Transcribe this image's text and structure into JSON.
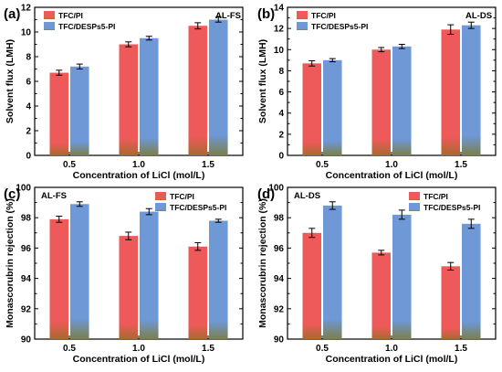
{
  "colors": {
    "tfc_pi_fill": "#ee5a5a",
    "tfc_pi_bottom": "#a8692e",
    "tfc_desps5_fill": "#6e98d6",
    "tfc_desps5_bottom": "#7b7f4a"
  },
  "chart_data": [
    {
      "id": "a",
      "type": "bar",
      "panel_label": "(a)",
      "tag": "AL-FS",
      "categories": [
        "0.5",
        "1.0",
        "1.5"
      ],
      "xlabel": "Concentration of LiCl (mol/L)",
      "ylabel": "Solvent flux (LMH)",
      "ylim": [
        0,
        12
      ],
      "yticks": [
        "0",
        "2",
        "4",
        "6",
        "8",
        "10",
        "12"
      ],
      "legend_position": "top-left",
      "series": [
        {
          "name": "TFC/PI",
          "values": [
            6.7,
            9.0,
            10.5
          ],
          "errors": [
            0.2,
            0.2,
            0.25
          ]
        },
        {
          "name": "TFC/DESPs5-PI",
          "values": [
            7.2,
            9.5,
            11.0
          ],
          "errors": [
            0.2,
            0.15,
            0.2
          ]
        }
      ]
    },
    {
      "id": "b",
      "type": "bar",
      "panel_label": "(b)",
      "tag": "AL-DS",
      "categories": [
        "0.5",
        "1.0",
        "1.5"
      ],
      "xlabel": "Concentration of LiCl (mol/L)",
      "ylabel": "Solvent flux (LMH)",
      "ylim": [
        0,
        14
      ],
      "yticks": [
        "0",
        "2",
        "4",
        "6",
        "8",
        "10",
        "12",
        "14"
      ],
      "legend_position": "top-left",
      "series": [
        {
          "name": "TFC/PI",
          "values": [
            8.7,
            10.0,
            11.9
          ],
          "errors": [
            0.25,
            0.2,
            0.45
          ]
        },
        {
          "name": "TFC/DESPs5-PI",
          "values": [
            9.0,
            10.3,
            12.3
          ],
          "errors": [
            0.15,
            0.2,
            0.3
          ]
        }
      ]
    },
    {
      "id": "c",
      "type": "bar",
      "panel_label": "(c)",
      "tag": "AL-FS",
      "categories": [
        "0.5",
        "1.0",
        "1.5"
      ],
      "xlabel": "Concentration of LiCl (mol/L)",
      "ylabel": "Monascorubrin rejection (%)",
      "ylim": [
        90,
        100
      ],
      "yticks": [
        "90",
        "92",
        "94",
        "96",
        "98",
        "100"
      ],
      "legend_position": "top-right",
      "series": [
        {
          "name": "TFC/PI",
          "values": [
            97.9,
            96.8,
            96.1
          ],
          "errors": [
            0.2,
            0.25,
            0.25
          ]
        },
        {
          "name": "TFC/DESPs5-PI",
          "values": [
            98.9,
            98.4,
            97.8
          ],
          "errors": [
            0.15,
            0.2,
            0.1
          ]
        }
      ]
    },
    {
      "id": "d",
      "type": "bar",
      "panel_label": "(d)",
      "tag": "AL-DS",
      "categories": [
        "0.5",
        "1.0",
        "1.5"
      ],
      "xlabel": "Concentration of LiCl (mol/L)",
      "ylabel": "Monascorubrin rejection (%)",
      "ylim": [
        90,
        100
      ],
      "yticks": [
        "90",
        "92",
        "94",
        "96",
        "98",
        "100"
      ],
      "legend_position": "top-right",
      "series": [
        {
          "name": "TFC/PI",
          "values": [
            97.0,
            95.7,
            94.8
          ],
          "errors": [
            0.3,
            0.15,
            0.25
          ]
        },
        {
          "name": "TFC/DESPs5-PI",
          "values": [
            98.8,
            98.2,
            97.6
          ],
          "errors": [
            0.25,
            0.3,
            0.3
          ]
        }
      ]
    }
  ]
}
